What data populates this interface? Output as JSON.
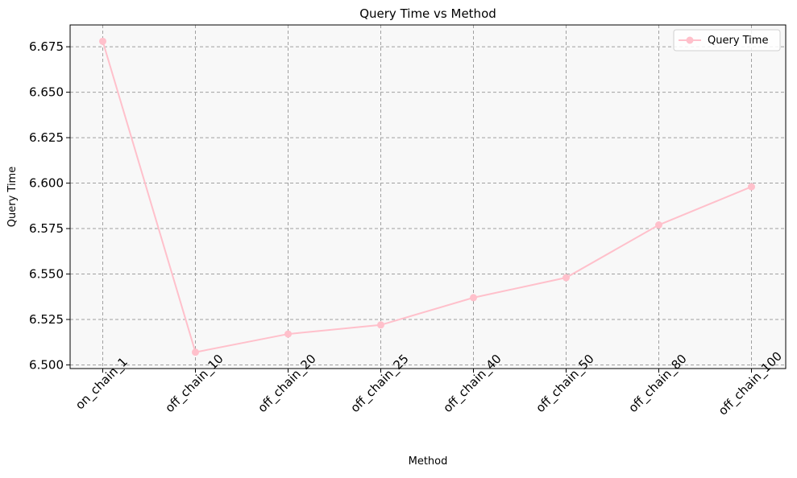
{
  "chart_data": {
    "type": "line",
    "title": "Query Time vs Method",
    "xlabel": "Method",
    "ylabel": "Query Time",
    "categories": [
      "on_chain_1",
      "off_chain_10",
      "off_chain_20",
      "off_chain_25",
      "off_chain_40",
      "off_chain_50",
      "off_chain_80",
      "off_chain_100"
    ],
    "series": [
      {
        "name": "Query Time",
        "values": [
          6.678,
          6.507,
          6.517,
          6.522,
          6.537,
          6.548,
          6.577,
          6.598
        ],
        "color": "#ffc0cb",
        "marker": "circle"
      }
    ],
    "ylim": [
      6.498,
      6.687
    ],
    "yticks": [
      "6.500",
      "6.525",
      "6.550",
      "6.575",
      "6.600",
      "6.625",
      "6.650",
      "6.675"
    ],
    "grid": true,
    "grid_style": "dashed",
    "legend_position": "top-right",
    "plot_background": "#f8f8f8",
    "grid_color": "#a0a0a0"
  }
}
